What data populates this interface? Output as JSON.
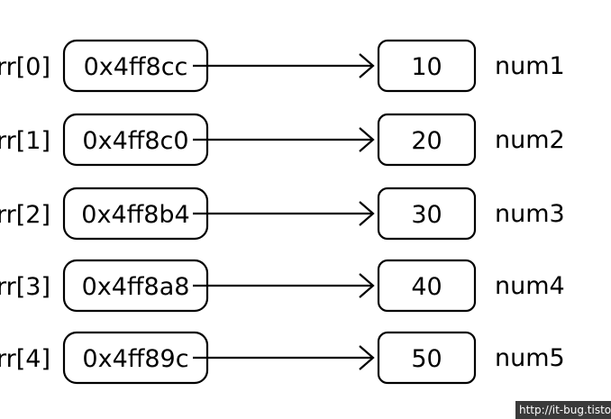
{
  "diagram": {
    "rows": [
      {
        "index_label": "rr[0]",
        "address": "0x4ff8cc",
        "value": "10",
        "var_name": "num1"
      },
      {
        "index_label": "rr[1]",
        "address": "0x4ff8c0",
        "value": "20",
        "var_name": "num2"
      },
      {
        "index_label": "rr[2]",
        "address": "0x4ff8b4",
        "value": "30",
        "var_name": "num3"
      },
      {
        "index_label": "rr[3]",
        "address": "0x4ff8a8",
        "value": "40",
        "var_name": "num4"
      },
      {
        "index_label": "rr[4]",
        "address": "0x4ff89c",
        "value": "50",
        "var_name": "num5"
      }
    ]
  },
  "watermark": "http://it-bug.tistory.com"
}
